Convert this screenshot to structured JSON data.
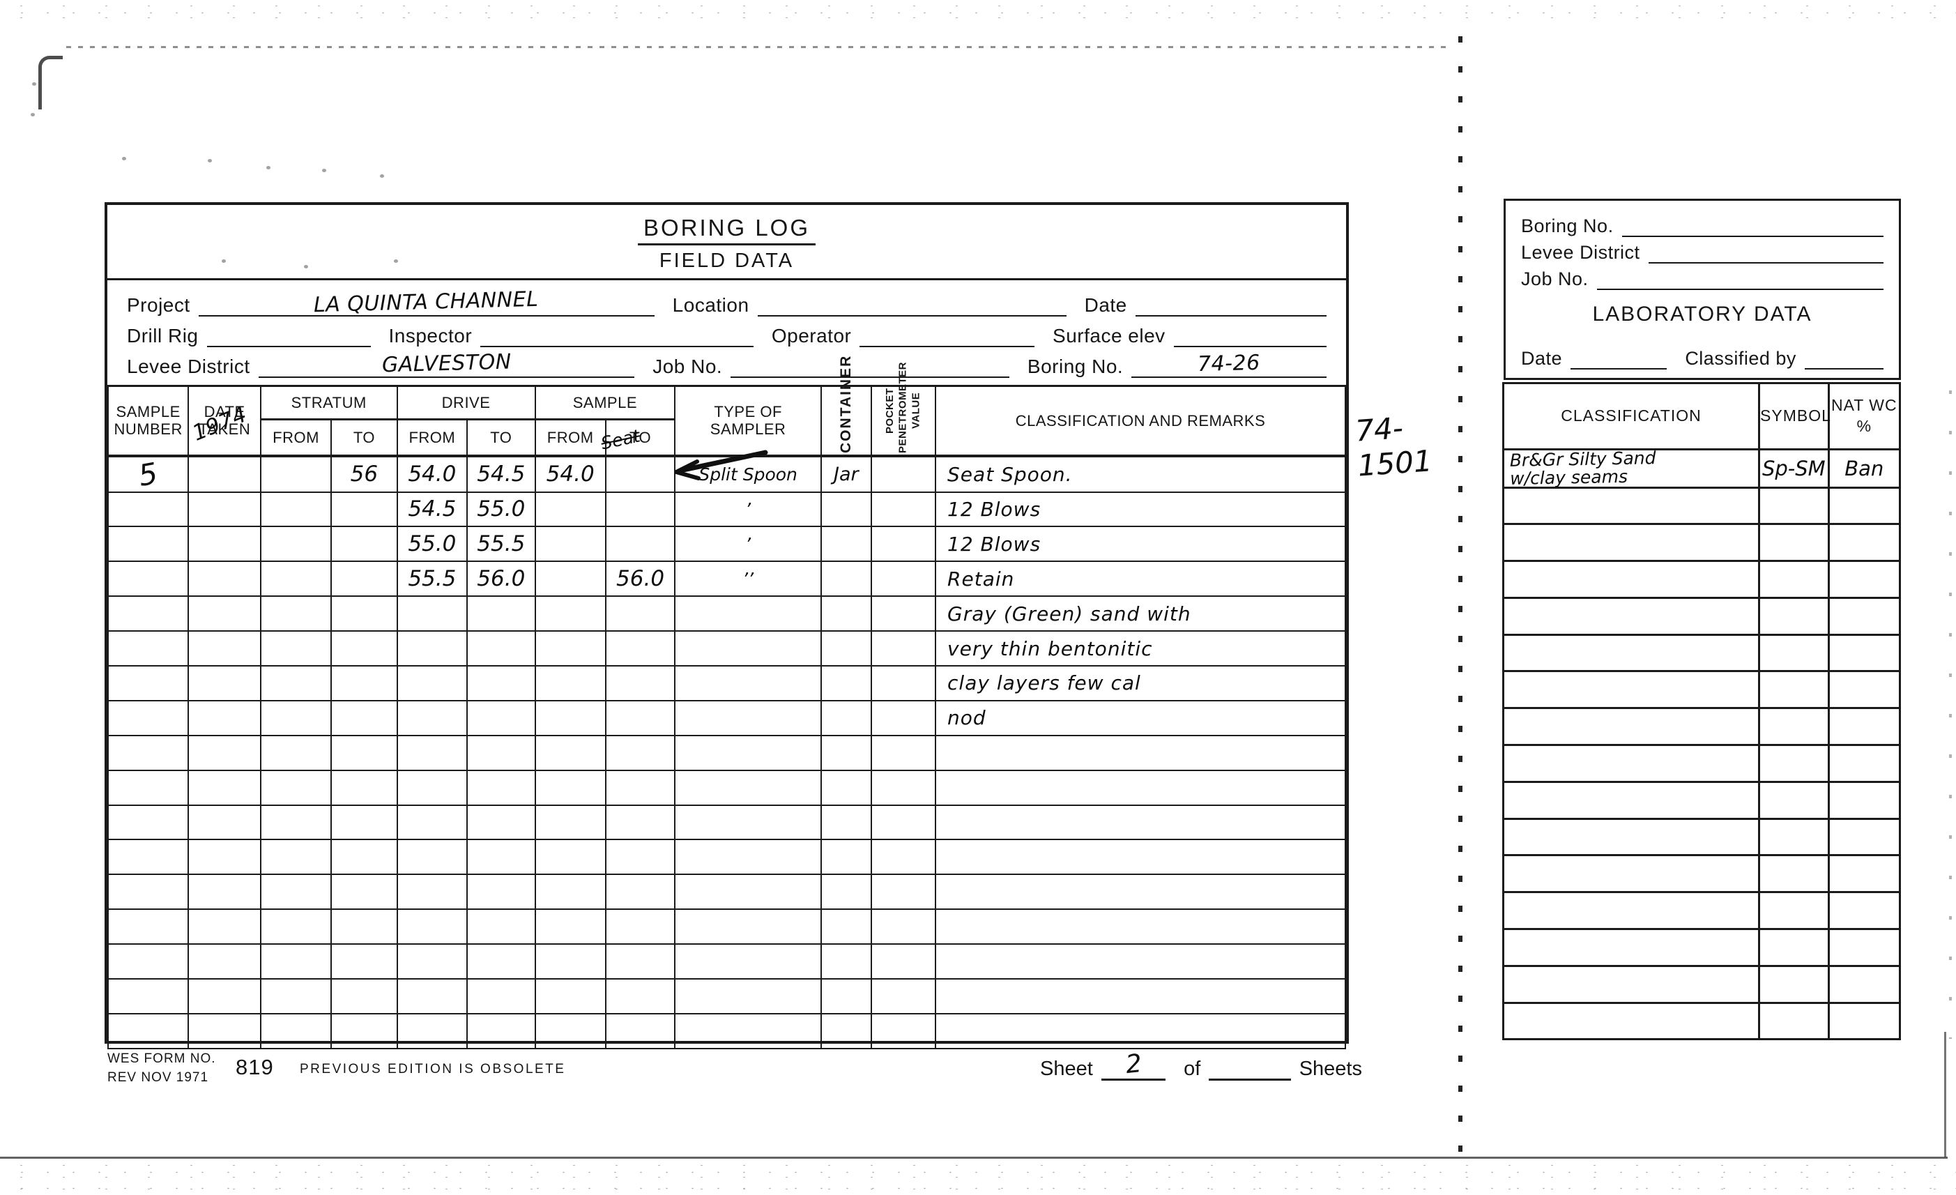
{
  "form": {
    "title": "BORING LOG",
    "subtitle": "FIELD DATA",
    "fields": {
      "project": {
        "label": "Project",
        "value": "LA QUINTA CHANNEL"
      },
      "location": {
        "label": "Location",
        "value": ""
      },
      "date": {
        "label": "Date",
        "value": ""
      },
      "drill_rig": {
        "label": "Drill Rig",
        "value": ""
      },
      "inspector": {
        "label": "Inspector",
        "value": ""
      },
      "operator": {
        "label": "Operator",
        "value": ""
      },
      "surface_elev": {
        "label": "Surface elev",
        "value": ""
      },
      "levee_district": {
        "label": "Levee District",
        "value": "GALVESTON"
      },
      "job_no": {
        "label": "Job No.",
        "value": ""
      },
      "boring_no": {
        "label": "Boring No.",
        "value": "74-26"
      }
    },
    "table": {
      "headers": {
        "sample_number": "SAMPLE\nNUMBER",
        "date_taken": "DATE\nTAKEN",
        "stratum": "STRATUM",
        "drive": "DRIVE",
        "sample": "SAMPLE",
        "from": "FROM",
        "to": "TO",
        "type_of_sampler": "TYPE OF\nSAMPLER",
        "container": "CONTAINER",
        "pocket": "POCKET\nPENETROMETER\nVALUE",
        "classification": "CLASSIFICATION AND REMARKS"
      },
      "rows": [
        {
          "sample_number": "5",
          "stratum_to": "56",
          "drive_from": "54.0",
          "drive_to": "54.5",
          "sample_from": "54.0",
          "sampler": "Split Spoon",
          "container": "Jar",
          "remarks": "Seat Spoon."
        },
        {
          "drive_from": "54.5",
          "drive_to": "55.0",
          "sampler": "’",
          "remarks": "12 Blows"
        },
        {
          "drive_from": "55.0",
          "drive_to": "55.5",
          "sampler": "’",
          "remarks": "12 Blows"
        },
        {
          "drive_from": "55.5",
          "drive_to": "56.0",
          "sample_to": "56.0",
          "sampler": "’’",
          "remarks": "Retain"
        },
        {
          "remarks": "Gray (Green) sand with"
        },
        {
          "remarks": "very thin bentonitic"
        },
        {
          "remarks": "clay layers few cal"
        },
        {
          "remarks": "nod"
        },
        {},
        {},
        {},
        {},
        {},
        {},
        {},
        {},
        {}
      ]
    },
    "annotations": {
      "year_note": "1974",
      "seat_note": "Seat",
      "margin_note": "74-\n1501"
    },
    "footer": {
      "form_no_line1": "WES FORM NO.",
      "form_no_line2": "REV NOV 1971",
      "form_number": "819",
      "obsolete": "PREVIOUS EDITION IS OBSOLETE",
      "sheet_label": "Sheet",
      "sheet_value": "2",
      "of_label": "of",
      "sheets_label": "Sheets"
    }
  },
  "lab": {
    "boring_no_label": "Boring No.",
    "levee_district_label": "Levee District",
    "job_no_label": "Job No.",
    "title": "LABORATORY DATA",
    "date_label": "Date",
    "classified_by_label": "Classified by",
    "headers": {
      "classification": "CLASSIFICATION",
      "symbol": "SYMBOL",
      "nat_wc": "NAT WC\n%"
    },
    "rows": [
      {
        "classification": "Br&Gr Silty Sand\nw/clay seams",
        "symbol": "Sp-SM",
        "nat_wc": "Ban"
      },
      {},
      {},
      {},
      {},
      {},
      {},
      {},
      {},
      {},
      {},
      {},
      {},
      {},
      {},
      {}
    ]
  }
}
